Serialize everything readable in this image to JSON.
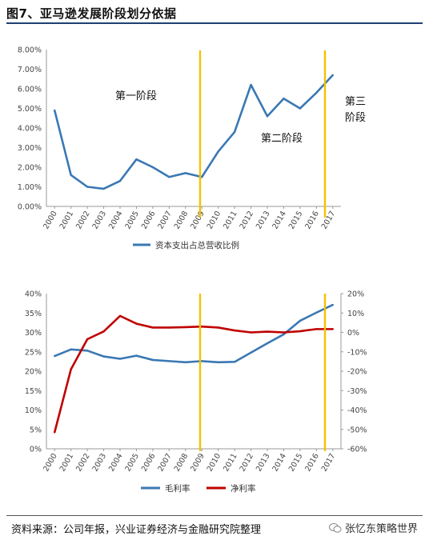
{
  "header": {
    "title": "图7、亚马逊发展阶段划分依据"
  },
  "footer": {
    "source": "资料来源：公司年报，兴业证券经济与金融研究院整理",
    "brand": "张忆东策略世界"
  },
  "stages": {
    "stage1": "第一阶段",
    "stage2": "第二阶段",
    "stage3_line1": "第三",
    "stage3_line2": "阶段"
  },
  "colors": {
    "blue": "#3a78b3",
    "red": "#c00000",
    "yellow": "#f2c200",
    "axis": "#999999"
  },
  "chart_data": [
    {
      "type": "line",
      "x": [
        "2000",
        "2001",
        "2002",
        "2003",
        "2004",
        "2005",
        "2006",
        "2007",
        "2008",
        "2009",
        "2010",
        "2011",
        "2012",
        "2013",
        "2014",
        "2015",
        "2016",
        "2017"
      ],
      "series": [
        {
          "name": "资本支出占总营收比例",
          "values": [
            4.9,
            1.6,
            1.0,
            0.9,
            1.3,
            2.4,
            2.0,
            1.5,
            1.7,
            1.5,
            2.8,
            3.8,
            6.2,
            4.6,
            5.5,
            5.0,
            5.8,
            6.7
          ]
        }
      ],
      "ylim": [
        0,
        8
      ],
      "yticks": [
        "0.00%",
        "1.00%",
        "2.00%",
        "3.00%",
        "4.00%",
        "5.00%",
        "6.00%",
        "7.00%",
        "8.00%"
      ],
      "legend": "bottom"
    },
    {
      "type": "line",
      "x": [
        "2000",
        "2001",
        "2002",
        "2003",
        "2004",
        "2005",
        "2006",
        "2007",
        "2008",
        "2009",
        "2010",
        "2011",
        "2012",
        "2013",
        "2014",
        "2015",
        "2016",
        "2017"
      ],
      "series": [
        {
          "name": "毛利率",
          "axis": "left",
          "values": [
            23.9,
            25.6,
            25.3,
            23.8,
            23.2,
            24.0,
            22.9,
            22.6,
            22.3,
            22.6,
            22.3,
            22.4,
            24.8,
            27.2,
            29.5,
            33.0,
            35.1,
            37.1
          ]
        },
        {
          "name": "净利率",
          "axis": "right",
          "values": [
            -51.5,
            -19.0,
            -3.5,
            0.5,
            8.5,
            4.5,
            2.5,
            2.5,
            2.7,
            3.0,
            2.5,
            1.0,
            0.0,
            0.4,
            0.0,
            0.6,
            1.7,
            1.7
          ]
        }
      ],
      "ylim_left": [
        0,
        40
      ],
      "ylim_right": [
        -60,
        20
      ],
      "yticks_left": [
        "0%",
        "5%",
        "10%",
        "15%",
        "20%",
        "25%",
        "30%",
        "35%",
        "40%"
      ],
      "yticks_right": [
        "-60%",
        "-50%",
        "-40%",
        "-30%",
        "-20%",
        "-10%",
        "0%",
        "10%",
        "20%"
      ],
      "legend": "bottom"
    }
  ],
  "dividers": [
    "2009",
    "2016"
  ]
}
